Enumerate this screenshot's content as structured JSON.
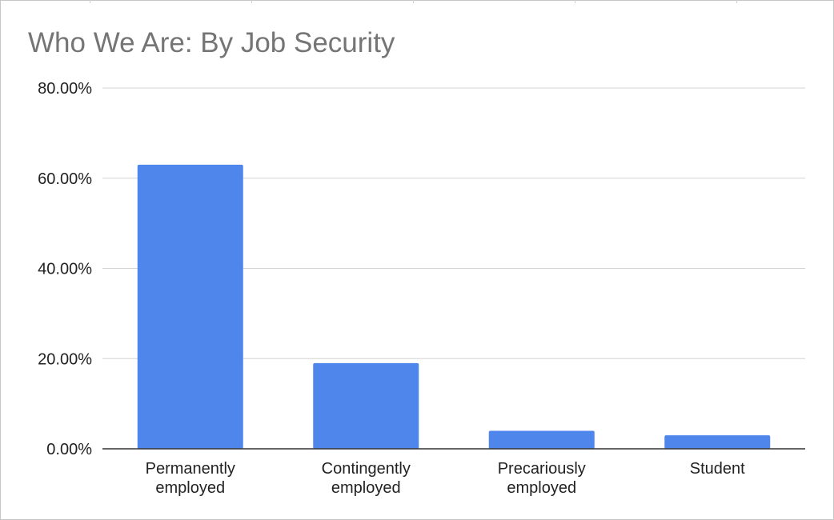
{
  "chart_data": {
    "type": "bar",
    "title": "Who We Are: By Job Security",
    "xlabel": "",
    "ylabel": "",
    "categories": [
      [
        "Permanently",
        "employed"
      ],
      [
        "Contingently",
        "employed"
      ],
      [
        "Precariously",
        "employed"
      ],
      [
        "Student"
      ]
    ],
    "values": [
      63.0,
      19.0,
      4.0,
      3.0
    ],
    "ylim": [
      0,
      80
    ],
    "yticks": [
      0,
      20,
      40,
      60,
      80
    ],
    "ytick_labels": [
      "0.00%",
      "20.00%",
      "40.00%",
      "60.00%",
      "80.00%"
    ],
    "grid": true,
    "legend": "none",
    "bar_color": "#4f86ec",
    "grid_color": "#d3d3d3",
    "axis_color": "#333333"
  }
}
